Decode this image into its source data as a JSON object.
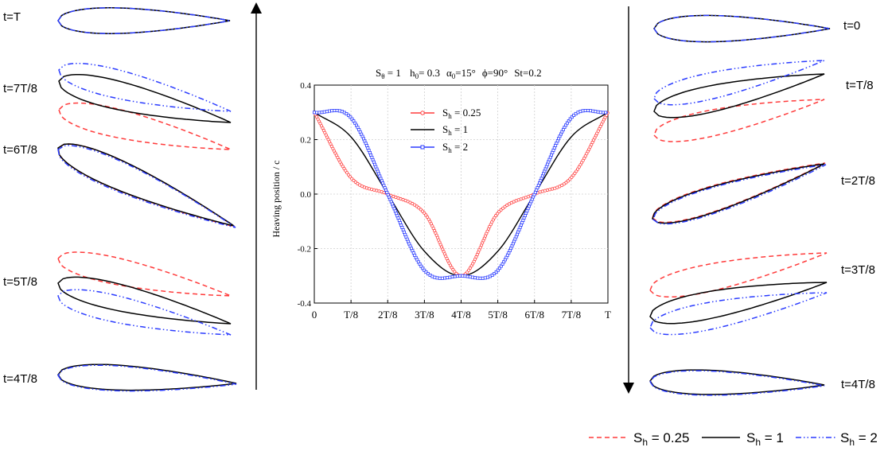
{
  "left_column": {
    "labels": [
      "t=T",
      "t=7T/8",
      "t=6T/8",
      "t=5T/8",
      "t=4T/8"
    ]
  },
  "right_column": {
    "labels": [
      "t=0",
      "t=T/8",
      "t=2T/8",
      "t=3T/8",
      "t=4T/8"
    ]
  },
  "colors": {
    "sh_025": "#ff3b3b",
    "sh_1": "#000000",
    "sh_2": "#2b3cff"
  },
  "chart_data": {
    "type": "line",
    "title_parts": {
      "s_theta": "S",
      "s_theta_sub": "θ",
      "s_theta_val": "= 1",
      "h0": "h",
      "h0_sub": "0",
      "h0_val": "= 0.3",
      "alpha0": "α",
      "alpha0_sub": "0",
      "alpha0_val": "=15°",
      "phi": "ϕ=90°",
      "st": "St=0.2"
    },
    "ylabel": "Heaving position / c",
    "xlabel": "",
    "x_ticks": [
      "0",
      "T/8",
      "2T/8",
      "3T/8",
      "4T/8",
      "5T/8",
      "6T/8",
      "7T/8",
      "T"
    ],
    "y_ticks": [
      "0.4",
      "0.2",
      "0.0",
      "-0.2",
      "-0.4"
    ],
    "ylim": [
      -0.4,
      0.4
    ],
    "x": [
      0,
      0.125,
      0.25,
      0.375,
      0.5,
      0.625,
      0.75,
      0.875,
      1.0
    ],
    "series": [
      {
        "name_main": "S",
        "name_sub": "h",
        "name_val": " = 0.25",
        "values": [
          0.3,
          0.06,
          0.0,
          -0.07,
          -0.3,
          -0.07,
          0.0,
          0.06,
          0.3
        ]
      },
      {
        "name_main": "S",
        "name_sub": "h",
        "name_val": " = 1",
        "values": [
          0.3,
          0.21,
          0.0,
          -0.21,
          -0.3,
          -0.21,
          0.0,
          0.21,
          0.3
        ]
      },
      {
        "name_main": "S",
        "name_sub": "h",
        "name_val": " = 2",
        "values": [
          0.3,
          0.28,
          0.0,
          -0.28,
          -0.3,
          -0.28,
          0.0,
          0.28,
          0.3
        ]
      }
    ]
  },
  "bottom_legend": [
    {
      "main": "S",
      "sub": "h",
      "val": " = 0.25"
    },
    {
      "main": "S",
      "sub": "h",
      "val": " = 1"
    },
    {
      "main": "S",
      "sub": "h",
      "val": " = 2"
    }
  ]
}
